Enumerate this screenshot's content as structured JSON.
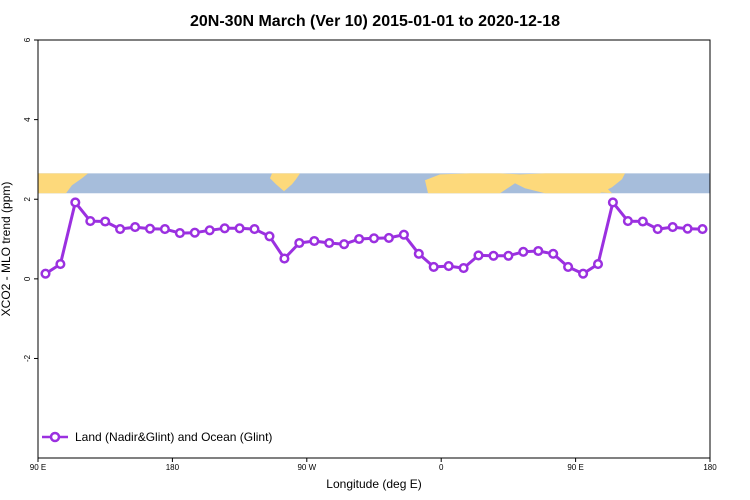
{
  "chart_data": {
    "type": "line",
    "title": "20N-30N March (Ver 10)   2015-01-01 to 2020-12-18",
    "xlabel": "Longitude (deg E)",
    "ylabel": "XCO2 - MLO trend (ppm)",
    "xlim": [
      90,
      540
    ],
    "ylim": [
      -4.5,
      6.0
    ],
    "xticks": [
      {
        "value": 90,
        "label": "90 E"
      },
      {
        "value": 180,
        "label": "180"
      },
      {
        "value": 270,
        "label": "90 W"
      },
      {
        "value": 360,
        "label": "0"
      },
      {
        "value": 450,
        "label": "90 E"
      },
      {
        "value": 540,
        "label": "180"
      }
    ],
    "yticks": [
      {
        "value": -2,
        "label": "-2"
      },
      {
        "value": 0,
        "label": "0"
      },
      {
        "value": 2,
        "label": "2"
      },
      {
        "value": 4,
        "label": "4"
      },
      {
        "value": 6,
        "label": "6"
      }
    ],
    "grid": false,
    "legend_position": "bottom-left",
    "map_strip": {
      "y_range": [
        2.15,
        2.65
      ],
      "ocean_color": "#a6bddb",
      "land_color": "#fdd97b"
    },
    "series": [
      {
        "name": "Land (Nadir&Glint) and Ocean (Glint)",
        "color": "#9b30e0",
        "x": [
          95,
          105,
          115,
          125,
          135,
          145,
          155,
          165,
          175,
          185,
          195,
          205,
          215,
          225,
          235,
          245,
          255,
          265,
          275,
          285,
          295,
          305,
          315,
          325,
          335,
          345,
          355,
          365,
          375,
          385,
          395,
          405,
          415,
          425,
          435,
          445,
          455,
          465,
          475,
          485,
          495,
          505,
          515,
          525,
          535
        ],
        "y": [
          0.13,
          0.37,
          1.92,
          1.45,
          1.44,
          1.25,
          1.3,
          1.26,
          1.25,
          1.15,
          1.16,
          1.22,
          1.27,
          1.27,
          1.25,
          1.07,
          0.51,
          0.9,
          0.95,
          0.9,
          0.87,
          1.0,
          1.02,
          1.03,
          1.11,
          0.63,
          0.3,
          0.32,
          0.27,
          0.59,
          0.58,
          0.58,
          0.68,
          0.7,
          0.63,
          0.3,
          0.13,
          0.37,
          1.92,
          1.45,
          1.44,
          1.25,
          1.3,
          1.26,
          1.25
        ]
      }
    ]
  }
}
